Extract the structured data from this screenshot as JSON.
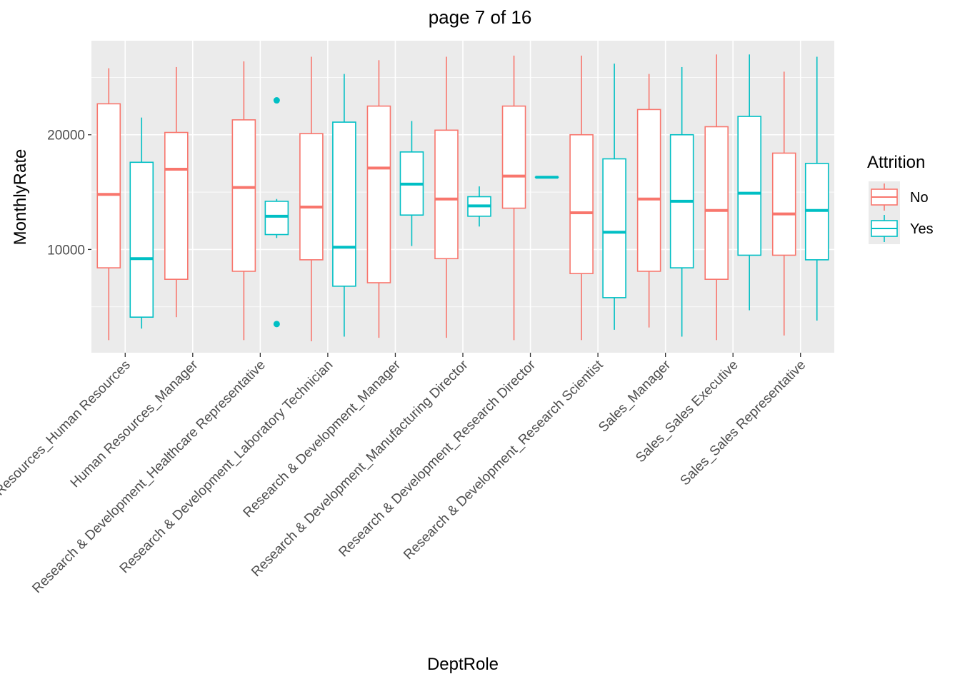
{
  "chart_data": {
    "type": "boxplot",
    "title": "page 7 of 16",
    "xlabel": "DeptRole",
    "ylabel": "MonthlyRate",
    "ylim": [
      1000,
      28200
    ],
    "yticks": [
      10000,
      20000
    ],
    "ytick_labels": [
      "10000",
      "20000"
    ],
    "grid": true,
    "legend": {
      "title": "Attrition",
      "position": "right",
      "entries": [
        {
          "label": "No",
          "color": "#F8766D"
        },
        {
          "label": "Yes",
          "color": "#00BFC4"
        }
      ]
    },
    "categories": [
      "Human Resources_Human Resources",
      "Human Resources_Manager",
      "Research & Development_Healthcare Representative",
      "Research & Development_Laboratory Technician",
      "Research & Development_Manager",
      "Research & Development_Manufacturing Director",
      "Research & Development_Research Director",
      "Research & Development_Research Scientist",
      "Sales_Manager",
      "Sales_Sales Executive",
      "Sales_Sales Representative"
    ],
    "category_labels": [
      "Resources_Human Resources",
      "Human Resources_Manager",
      "Research & Development_Healthcare Representative",
      "Research & Development_Laboratory Technician",
      "Research & Development_Manager",
      "Research & Development_Manufacturing Director",
      "Research & Development_Research Director",
      "Research & Development_Research Scientist",
      "Sales_Manager",
      "Sales_Sales Executive",
      "Sales_Sales Representative"
    ],
    "series": [
      {
        "name": "No",
        "color": "#F8766D",
        "boxes": [
          {
            "category": 0,
            "min": 2100,
            "q1": 8400,
            "median": 14800,
            "q3": 22700,
            "max": 25800,
            "outliers": []
          },
          {
            "category": 1,
            "min": 4100,
            "q1": 7400,
            "median": 17000,
            "q3": 20200,
            "max": 25900,
            "outliers": []
          },
          {
            "category": 2,
            "min": 2100,
            "q1": 8100,
            "median": 15400,
            "q3": 21300,
            "max": 26400,
            "outliers": []
          },
          {
            "category": 3,
            "min": 2000,
            "q1": 9100,
            "median": 13700,
            "q3": 20100,
            "max": 26800,
            "outliers": []
          },
          {
            "category": 4,
            "min": 2300,
            "q1": 7100,
            "median": 17100,
            "q3": 22500,
            "max": 26500,
            "outliers": []
          },
          {
            "category": 5,
            "min": 2300,
            "q1": 9200,
            "median": 14400,
            "q3": 20400,
            "max": 26800,
            "outliers": []
          },
          {
            "category": 6,
            "min": 2100,
            "q1": 13600,
            "median": 16400,
            "q3": 22500,
            "max": 26900,
            "outliers": []
          },
          {
            "category": 7,
            "min": 2100,
            "q1": 7900,
            "median": 13200,
            "q3": 20000,
            "max": 26900,
            "outliers": []
          },
          {
            "category": 8,
            "min": 3200,
            "q1": 8100,
            "median": 14400,
            "q3": 22200,
            "max": 25300,
            "outliers": []
          },
          {
            "category": 9,
            "min": 2100,
            "q1": 7400,
            "median": 13400,
            "q3": 20700,
            "max": 27000,
            "outliers": []
          },
          {
            "category": 10,
            "min": 2500,
            "q1": 9500,
            "median": 13100,
            "q3": 18400,
            "max": 25500,
            "outliers": []
          }
        ]
      },
      {
        "name": "Yes",
        "color": "#00BFC4",
        "boxes": [
          {
            "category": 0,
            "min": 3100,
            "q1": 4100,
            "median": 9200,
            "q3": 17600,
            "max": 21500,
            "outliers": []
          },
          {
            "category": 2,
            "min": 11000,
            "q1": 11300,
            "median": 12900,
            "q3": 14200,
            "max": 14400,
            "outliers": [
              23000,
              3500
            ]
          },
          {
            "category": 3,
            "min": 2400,
            "q1": 6800,
            "median": 10200,
            "q3": 21100,
            "max": 25300,
            "outliers": []
          },
          {
            "category": 4,
            "min": 10300,
            "q1": 13000,
            "median": 15700,
            "q3": 18500,
            "max": 21200,
            "outliers": []
          },
          {
            "category": 5,
            "min": 12000,
            "q1": 12900,
            "median": 13800,
            "q3": 14600,
            "max": 15500,
            "outliers": []
          },
          {
            "category": 6,
            "min": 16300,
            "q1": 16300,
            "median": 16300,
            "q3": 16300,
            "max": 16300,
            "outliers": []
          },
          {
            "category": 7,
            "min": 3000,
            "q1": 5800,
            "median": 11500,
            "q3": 17900,
            "max": 26200,
            "outliers": []
          },
          {
            "category": 8,
            "min": 2400,
            "q1": 8400,
            "median": 14200,
            "q3": 20000,
            "max": 25900,
            "outliers": []
          },
          {
            "category": 9,
            "min": 4700,
            "q1": 9500,
            "median": 14900,
            "q3": 21600,
            "max": 27000,
            "outliers": []
          },
          {
            "category": 10,
            "min": 3800,
            "q1": 9100,
            "median": 13400,
            "q3": 17500,
            "max": 26800,
            "outliers": []
          }
        ]
      }
    ]
  }
}
